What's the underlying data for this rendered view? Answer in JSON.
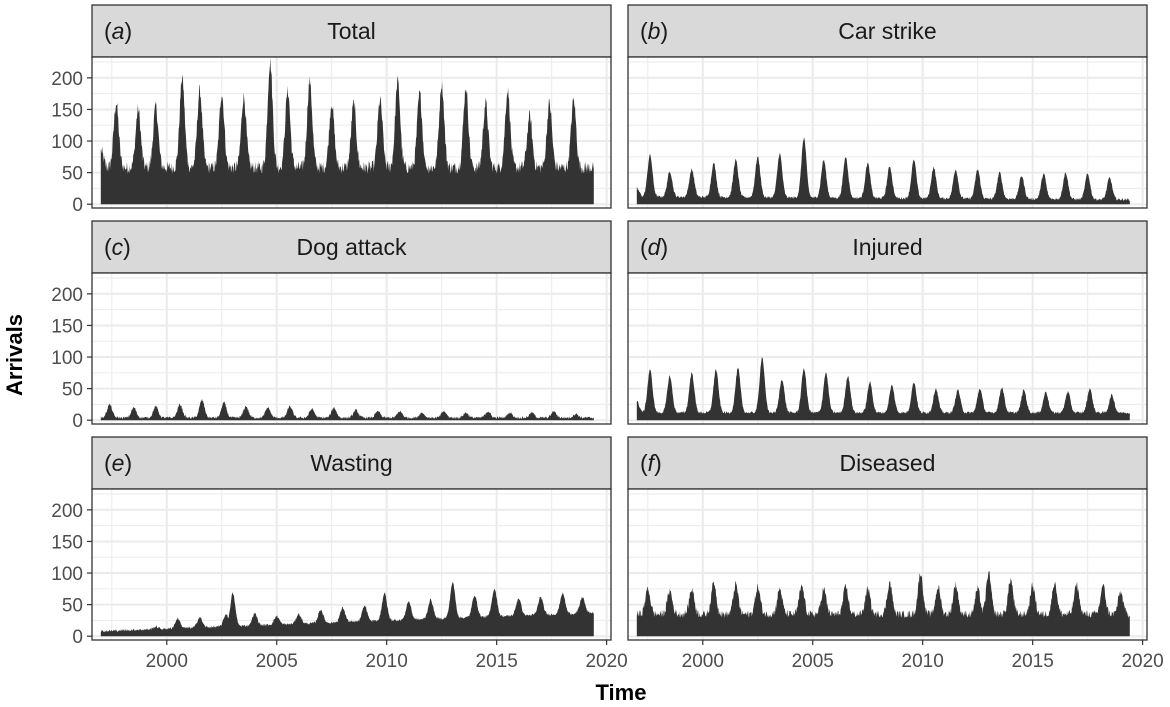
{
  "chart_data": {
    "type": "area",
    "ylabel": "Arrivals",
    "xlabel": "Time",
    "xlim": [
      1996.6,
      2020.2
    ],
    "ylim": [
      -6,
      233
    ],
    "x_ticks": [
      2000,
      2005,
      2010,
      2015,
      2020
    ],
    "y_ticks": [
      0,
      50,
      100,
      150,
      200
    ],
    "grid": true,
    "colors": {
      "area": "#333333",
      "strip": "#d9d9d9",
      "grid": "#ebebeb",
      "border": "#333333"
    },
    "series_time_range": [
      1997.0,
      2019.42
    ],
    "panels": [
      {
        "letter": "a",
        "title": "Total",
        "peaks": [
          [
            1997.0,
            85
          ],
          [
            1997.7,
            160
          ],
          [
            1998.7,
            150
          ],
          [
            1999.5,
            155
          ],
          [
            2000.7,
            200
          ],
          [
            2001.5,
            180
          ],
          [
            2002.5,
            175
          ],
          [
            2003.5,
            170
          ],
          [
            2004.7,
            225
          ],
          [
            2005.5,
            180
          ],
          [
            2006.5,
            195
          ],
          [
            2007.5,
            160
          ],
          [
            2008.5,
            160
          ],
          [
            2009.7,
            165
          ],
          [
            2010.5,
            195
          ],
          [
            2011.5,
            175
          ],
          [
            2012.5,
            190
          ],
          [
            2013.6,
            185
          ],
          [
            2014.5,
            160
          ],
          [
            2015.5,
            180
          ],
          [
            2016.5,
            140
          ],
          [
            2017.4,
            160
          ],
          [
            2018.5,
            165
          ]
        ],
        "baseline": 58,
        "trend": 0
      },
      {
        "letter": "b",
        "title": "Car strike",
        "peaks": [
          [
            1997.0,
            25
          ],
          [
            1997.6,
            78
          ],
          [
            1998.5,
            52
          ],
          [
            1999.5,
            55
          ],
          [
            2000.5,
            65
          ],
          [
            2001.5,
            70
          ],
          [
            2002.5,
            75
          ],
          [
            2003.5,
            80
          ],
          [
            2004.6,
            105
          ],
          [
            2005.5,
            70
          ],
          [
            2006.5,
            75
          ],
          [
            2007.5,
            65
          ],
          [
            2008.5,
            60
          ],
          [
            2009.6,
            70
          ],
          [
            2010.5,
            58
          ],
          [
            2011.5,
            55
          ],
          [
            2012.5,
            55
          ],
          [
            2013.5,
            50
          ],
          [
            2014.5,
            45
          ],
          [
            2015.5,
            48
          ],
          [
            2016.5,
            50
          ],
          [
            2017.5,
            48
          ],
          [
            2018.5,
            42
          ]
        ],
        "baseline": 12,
        "trend": -0.2
      },
      {
        "letter": "c",
        "title": "Dog attack",
        "peaks": [
          [
            1997.4,
            25
          ],
          [
            1998.5,
            20
          ],
          [
            1999.5,
            22
          ],
          [
            2000.6,
            25
          ],
          [
            2001.6,
            32
          ],
          [
            2002.6,
            28
          ],
          [
            2003.6,
            22
          ],
          [
            2004.6,
            20
          ],
          [
            2005.6,
            22
          ],
          [
            2006.6,
            18
          ],
          [
            2007.6,
            20
          ],
          [
            2008.6,
            16
          ],
          [
            2009.6,
            14
          ],
          [
            2010.6,
            14
          ],
          [
            2011.6,
            12
          ],
          [
            2012.6,
            14
          ],
          [
            2013.6,
            12
          ],
          [
            2014.6,
            14
          ],
          [
            2015.6,
            12
          ],
          [
            2016.6,
            12
          ],
          [
            2017.6,
            14
          ],
          [
            2018.6,
            10
          ]
        ],
        "baseline": 4,
        "trend": 0
      },
      {
        "letter": "d",
        "title": "Injured",
        "peaks": [
          [
            1997.0,
            30
          ],
          [
            1997.6,
            80
          ],
          [
            1998.5,
            70
          ],
          [
            1999.5,
            75
          ],
          [
            2000.6,
            80
          ],
          [
            2001.6,
            82
          ],
          [
            2002.7,
            100
          ],
          [
            2003.6,
            65
          ],
          [
            2004.6,
            82
          ],
          [
            2005.6,
            75
          ],
          [
            2006.6,
            70
          ],
          [
            2007.6,
            60
          ],
          [
            2008.6,
            55
          ],
          [
            2009.6,
            60
          ],
          [
            2010.6,
            50
          ],
          [
            2011.6,
            48
          ],
          [
            2012.6,
            50
          ],
          [
            2013.6,
            52
          ],
          [
            2014.6,
            48
          ],
          [
            2015.6,
            45
          ],
          [
            2016.6,
            45
          ],
          [
            2017.6,
            50
          ],
          [
            2018.6,
            40
          ]
        ],
        "baseline": 12,
        "trend": 0
      },
      {
        "letter": "e",
        "title": "Wasting",
        "peaks": [
          [
            1999.5,
            15
          ],
          [
            2000.5,
            28
          ],
          [
            2001.5,
            30
          ],
          [
            2002.7,
            35
          ],
          [
            2003.0,
            68
          ],
          [
            2004.0,
            36
          ],
          [
            2005.0,
            32
          ],
          [
            2006.0,
            35
          ],
          [
            2007.0,
            42
          ],
          [
            2008.0,
            45
          ],
          [
            2009.0,
            48
          ],
          [
            2009.9,
            68
          ],
          [
            2011.0,
            55
          ],
          [
            2012.0,
            58
          ],
          [
            2013.0,
            85
          ],
          [
            2014.0,
            65
          ],
          [
            2014.9,
            75
          ],
          [
            2016.0,
            60
          ],
          [
            2017.0,
            62
          ],
          [
            2018.0,
            68
          ],
          [
            2018.9,
            62
          ]
        ],
        "baseline": 8,
        "trend": 1.3
      },
      {
        "letter": "f",
        "title": "Diseased",
        "peaks": [
          [
            1997.5,
            75
          ],
          [
            1998.5,
            72
          ],
          [
            1999.5,
            75
          ],
          [
            2000.5,
            85
          ],
          [
            2001.5,
            82
          ],
          [
            2002.5,
            78
          ],
          [
            2003.5,
            75
          ],
          [
            2004.5,
            80
          ],
          [
            2005.5,
            75
          ],
          [
            2006.5,
            78
          ],
          [
            2007.5,
            75
          ],
          [
            2008.5,
            85
          ],
          [
            2009.9,
            100
          ],
          [
            2010.7,
            78
          ],
          [
            2011.5,
            82
          ],
          [
            2012.5,
            75
          ],
          [
            2013.0,
            100
          ],
          [
            2014.0,
            90
          ],
          [
            2015.0,
            80
          ],
          [
            2016.0,
            85
          ],
          [
            2017.0,
            82
          ],
          [
            2018.2,
            80
          ],
          [
            2019.0,
            70
          ]
        ],
        "baseline": 35,
        "trend": 0
      }
    ]
  }
}
